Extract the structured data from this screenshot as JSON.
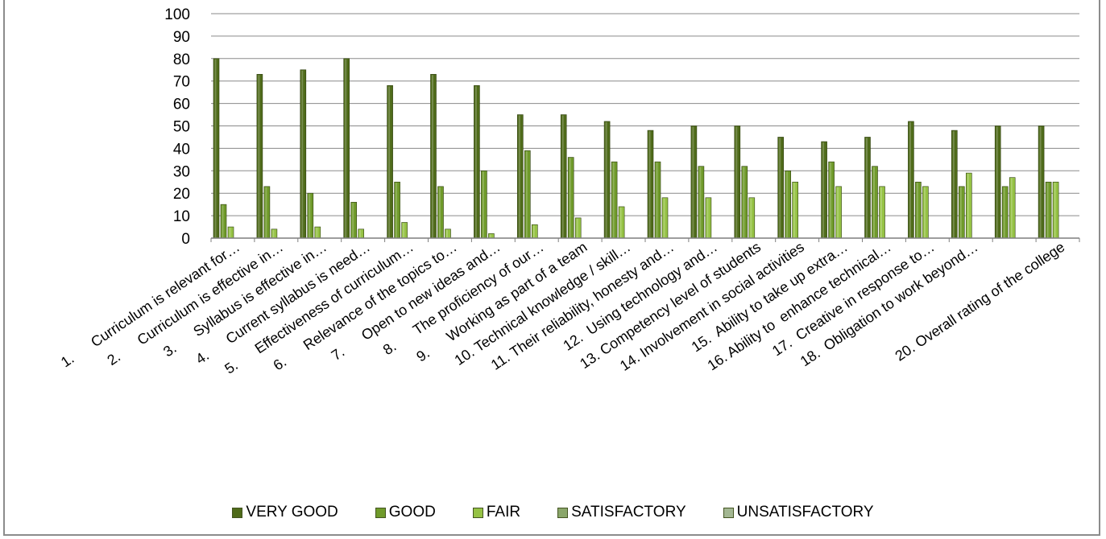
{
  "chart_data": {
    "type": "bar",
    "title": "",
    "xlabel": "",
    "ylabel": "",
    "ylim": [
      0,
      100
    ],
    "yticks": [
      "0",
      "10",
      "20",
      "30",
      "40",
      "50",
      "60",
      "70",
      "80",
      "90",
      "100"
    ],
    "grid": true,
    "legend_position": "bottom",
    "categories": [
      "1.      Curriculum is relevant for…",
      "2.      Curriculum is effective in…",
      "3.      Syllabus is effective in…",
      "4.      Current syllabus is need…",
      "5.      Effectiveness of curriculum…",
      "6.      Relevance of the topics to…",
      "7.      Open to new ideas and…",
      "8.      The proficiency of our…",
      "9.      Working as part of a team",
      "10. Technical knowledge / skill…",
      "11. Their reliability, honesty and…",
      "12.  Using technology and…",
      "13. Competency level of students",
      "14. Involvement in social activities",
      "15.  Ability to take up extra…",
      "16. Ability to  enhance technical…",
      "17.  Creative in response to…",
      "18.  Obligation to work beyond…",
      "",
      "20. Overall rating of the college"
    ],
    "series": [
      {
        "name": "VERY GOOD",
        "color": "#4f6b1a",
        "values": [
          80,
          73,
          75,
          80,
          68,
          73,
          68,
          55,
          55,
          52,
          48,
          50,
          50,
          45,
          43,
          45,
          52,
          48,
          50,
          50
        ]
      },
      {
        "name": "GOOD",
        "color": "#6f9a2a",
        "values": [
          15,
          23,
          20,
          16,
          25,
          23,
          30,
          39,
          36,
          34,
          34,
          32,
          32,
          30,
          34,
          32,
          25,
          23,
          23,
          25
        ]
      },
      {
        "name": "FAIR",
        "color": "#95c244",
        "values": [
          5,
          4,
          5,
          4,
          7,
          4,
          2,
          6,
          9,
          14,
          18,
          18,
          18,
          25,
          23,
          23,
          23,
          29,
          27,
          25
        ]
      },
      {
        "name": "SATISFACTORY",
        "color": "#8aa66a",
        "values": [
          0,
          0,
          0,
          0,
          0,
          0,
          0,
          0,
          0,
          0,
          0,
          0,
          0,
          0,
          0,
          0,
          0,
          0,
          0,
          0
        ]
      },
      {
        "name": "UNSATISFACTORY",
        "color": "#a3b792",
        "values": [
          0,
          0,
          0,
          0,
          0,
          0,
          0,
          0,
          0,
          0,
          0,
          0,
          0,
          0,
          0,
          0,
          0,
          0,
          0,
          0
        ]
      }
    ]
  }
}
